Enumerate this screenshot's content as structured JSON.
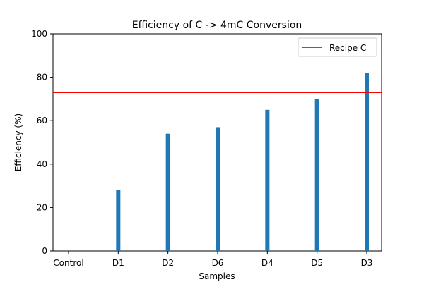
{
  "chart_data": {
    "type": "bar",
    "title": "Efficiency of C -> 4mC Conversion",
    "xlabel": "Samples",
    "ylabel": "Efficiency (%)",
    "categories": [
      "Control",
      "D1",
      "D2",
      "D6",
      "D4",
      "D5",
      "D3"
    ],
    "values": [
      0,
      28,
      54,
      57,
      65,
      70,
      82
    ],
    "ylim": [
      0,
      100
    ],
    "yticks": [
      0,
      20,
      40,
      60,
      80,
      100
    ],
    "bar_color": "#1f77b4",
    "grid": false,
    "reference_line": {
      "label": "Recipe C",
      "value": 73,
      "color": "#ff0000"
    },
    "legend": {
      "placement": "top-right",
      "entries": [
        "Recipe C"
      ]
    }
  }
}
